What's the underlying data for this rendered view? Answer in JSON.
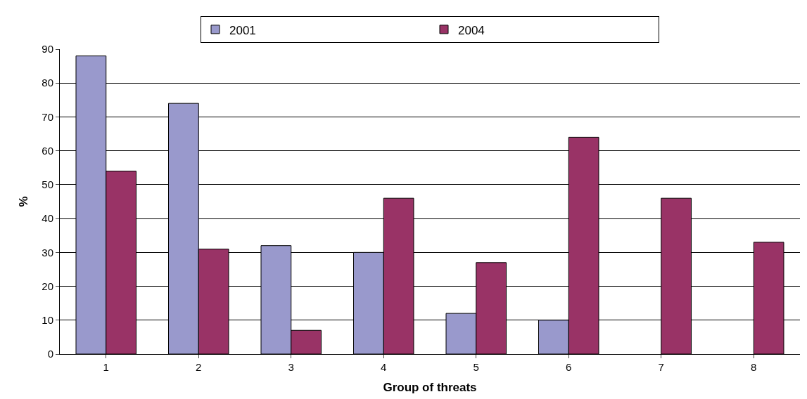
{
  "chart_data": {
    "type": "bar",
    "xlabel": "Group of threats",
    "ylabel": "%",
    "categories": [
      "1",
      "2",
      "3",
      "4",
      "5",
      "6",
      "7",
      "8"
    ],
    "series": [
      {
        "name": "2001",
        "color": "#9999cc",
        "values": [
          88,
          74,
          32,
          30,
          12,
          10,
          null,
          null
        ]
      },
      {
        "name": "2004",
        "color": "#993366",
        "values": [
          54,
          31,
          7,
          46,
          27,
          64,
          46,
          33
        ]
      }
    ],
    "ylim": [
      0,
      90
    ],
    "yticks": [
      0,
      10,
      20,
      30,
      40,
      50,
      60,
      70,
      80,
      90
    ],
    "grid": "y",
    "legend": "top"
  }
}
